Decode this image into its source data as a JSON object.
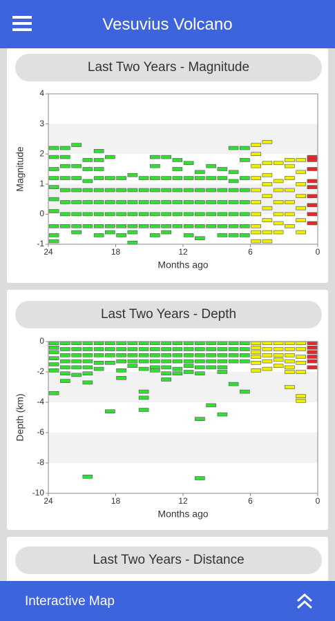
{
  "header": {
    "title": "Vesuvius Volcano"
  },
  "chart_data": [
    {
      "type": "event",
      "title": "Last Two Years - Magnitude",
      "xlabel": "Months ago",
      "ylabel": "Magnitude",
      "xlim": [
        24,
        0
      ],
      "xticks": [
        24,
        18,
        12,
        6,
        0
      ],
      "ylim": [
        -1,
        4
      ],
      "yticks": [
        -1,
        0,
        1,
        2,
        3,
        4
      ],
      "grid": "bands",
      "series": [
        {
          "color": "#33dd33",
          "x": [
            23.5,
            22.5,
            21.5,
            20.5,
            19.5,
            18.5,
            17.5,
            16.5,
            15.5,
            14.5,
            13.5,
            12.5,
            11.5,
            10.5,
            9.5,
            8.5,
            7.5,
            6.5
          ],
          "values": [
            [
              -0.9,
              -0.7,
              -0.4,
              0.1,
              0.5,
              0.9,
              1.2,
              1.5,
              1.9,
              2.2
            ],
            [
              -0.4,
              0,
              0.4,
              0.8,
              1.2,
              1.6,
              1.9,
              2.2
            ],
            [
              -0.6,
              -0.4,
              0,
              0.4,
              0.8,
              1.2,
              1.6,
              2.3
            ],
            [
              -0.4,
              0,
              0.4,
              0.8,
              1.1,
              1.5,
              1.8
            ],
            [
              -0.7,
              -0.4,
              0,
              0.4,
              0.8,
              1.2,
              1.5,
              1.8,
              2.1
            ],
            [
              -0.6,
              -0.4,
              0,
              0.4,
              0.8,
              1.2,
              1.9
            ],
            [
              -0.7,
              -0.4,
              0,
              0.4,
              0.8,
              1.2
            ],
            [
              -0.95,
              -0.6,
              -0.4,
              0,
              0.4,
              0.8,
              1.3
            ],
            [
              -0.4,
              0,
              0.4,
              0.8,
              1.2
            ],
            [
              -0.7,
              -0.4,
              0,
              0.4,
              0.8,
              1.2,
              1.6,
              1.9
            ],
            [
              -0.6,
              -0.4,
              0,
              0.4,
              0.8,
              1.2,
              1.9
            ],
            [
              -0.4,
              0,
              0.4,
              0.8,
              1.2,
              1.5,
              1.8
            ],
            [
              -0.7,
              -0.4,
              0,
              0.4,
              0.8,
              1.2,
              1.7
            ],
            [
              -0.8,
              -0.4,
              0,
              0.4,
              0.8,
              1.2,
              1.4
            ],
            [
              -0.4,
              0,
              0.4,
              0.8,
              1.2,
              1.6
            ],
            [
              -0.7,
              -0.4,
              0,
              0.4,
              0.8,
              1.2,
              1.5
            ],
            [
              -0.7,
              -0.4,
              0,
              0.4,
              0.8,
              1.1,
              1.4,
              2.2
            ],
            [
              -0.7,
              -0.4,
              0,
              0.4,
              0.8,
              1.2,
              1.8,
              2.2
            ]
          ]
        },
        {
          "color": "#eeee00",
          "x": [
            5.5,
            4.5,
            3.5,
            2.5,
            1.5
          ],
          "values": [
            [
              -0.9,
              -0.6,
              -0.4,
              0,
              0.4,
              0.8,
              1.2,
              1.6,
              2.0,
              2.3
            ],
            [
              -0.9,
              -0.6,
              -0.2,
              0.2,
              0.6,
              1.0,
              1.3,
              1.7,
              2.4
            ],
            [
              -0.6,
              -0.3,
              0,
              0.4,
              0.8,
              1.1,
              1.7
            ],
            [
              -0.4,
              0,
              0.4,
              0.8,
              1.2,
              1.6,
              1.8
            ],
            [
              -0.6,
              -0.2,
              0.2,
              0.6,
              1.0,
              1.4,
              1.8
            ]
          ]
        },
        {
          "color": "#e82828",
          "x": [
            0.5
          ],
          "values": [
            [
              -0.3,
              0,
              0.3,
              0.6,
              0.9,
              1.1,
              1.5,
              1.8,
              1.9
            ]
          ]
        }
      ]
    },
    {
      "type": "event",
      "title": "Last Two Years - Depth",
      "xlabel": "Months ago",
      "ylabel": "Depth (km)",
      "xlim": [
        24,
        0
      ],
      "xticks": [
        24,
        18,
        12,
        6,
        0
      ],
      "ylim": [
        -10,
        0
      ],
      "yticks": [
        -10,
        -8,
        -6,
        -4,
        -2,
        0
      ],
      "grid": "bands",
      "series": [
        {
          "color": "#33dd33",
          "x": [
            23.5,
            22.5,
            21.5,
            20.5,
            19.5,
            18.5,
            17.5,
            16.5,
            15.5,
            14.5,
            13.5,
            12.5,
            11.5,
            10.5,
            9.5,
            8.5,
            7.5,
            6.5
          ],
          "values": [
            [
              -0.1,
              -0.4,
              -0.7,
              -1.1,
              -1.5,
              -1.9,
              -3.4
            ],
            [
              -0.1,
              -0.5,
              -0.9,
              -1.3,
              -1.7,
              -2.1,
              -2.6
            ],
            [
              -0.1,
              -0.5,
              -0.9,
              -1.3,
              -1.7,
              -2.2
            ],
            [
              -0.1,
              -0.5,
              -0.9,
              -1.3,
              -1.7,
              -2.1,
              -2.7,
              -8.9
            ],
            [
              -0.1,
              -0.5,
              -0.9,
              -1.4,
              -1.8
            ],
            [
              -0.1,
              -0.5,
              -0.9,
              -1.4,
              -4.6
            ],
            [
              -0.1,
              -0.5,
              -0.9,
              -1.3,
              -1.9,
              -2.4
            ],
            [
              -0.1,
              -0.5,
              -0.9,
              -1.3,
              -1.6
            ],
            [
              -0.1,
              -0.5,
              -0.9,
              -1.3,
              -1.8,
              -3.3,
              -3.7,
              -4.5
            ],
            [
              -0.1,
              -0.5,
              -0.9,
              -1.3,
              -1.7,
              -1.9
            ],
            [
              -0.1,
              -0.5,
              -0.9,
              -1.3,
              -1.7,
              -2.1,
              -2.5
            ],
            [
              -0.1,
              -0.5,
              -0.9,
              -1.3,
              -1.8,
              -2.1
            ],
            [
              -0.1,
              -0.5,
              -0.9,
              -1.3,
              -1.6,
              -2.0
            ],
            [
              -0.1,
              -0.5,
              -0.9,
              -1.3,
              -1.7,
              -2.1,
              -5.1,
              -9.0
            ],
            [
              -0.1,
              -0.5,
              -0.9,
              -1.3,
              -1.7,
              -4.2
            ],
            [
              -0.1,
              -0.5,
              -0.9,
              -1.3,
              -1.7,
              -2.0,
              -4.8
            ],
            [
              -0.1,
              -0.5,
              -0.9,
              -1.3,
              -2.8
            ],
            [
              -0.1,
              -0.5,
              -0.9,
              -1.3,
              -3.3
            ]
          ]
        },
        {
          "color": "#eeee00",
          "x": [
            5.5,
            4.5,
            3.5,
            2.5,
            1.5
          ],
          "values": [
            [
              -0.1,
              -0.4,
              -0.7,
              -1.0,
              -1.4,
              -1.9
            ],
            [
              -0.1,
              -0.5,
              -0.9,
              -1.3,
              -1.8
            ],
            [
              -0.1,
              -0.5,
              -0.9,
              -1.2,
              -1.6
            ],
            [
              -0.1,
              -0.5,
              -0.9,
              -1.3,
              -1.7,
              -2.0,
              -3.0
            ],
            [
              -0.1,
              -0.5,
              -1.0,
              -1.4,
              -2.0,
              -3.6,
              -3.9
            ]
          ]
        },
        {
          "color": "#e82828",
          "x": [
            0.5
          ],
          "values": [
            [
              -0.1,
              -0.4,
              -0.7,
              -1.0,
              -1.3,
              -1.7
            ]
          ]
        }
      ]
    }
  ],
  "partial_card": {
    "title": "Last Two Years - Distance"
  },
  "footer": {
    "label": "Interactive Map"
  }
}
